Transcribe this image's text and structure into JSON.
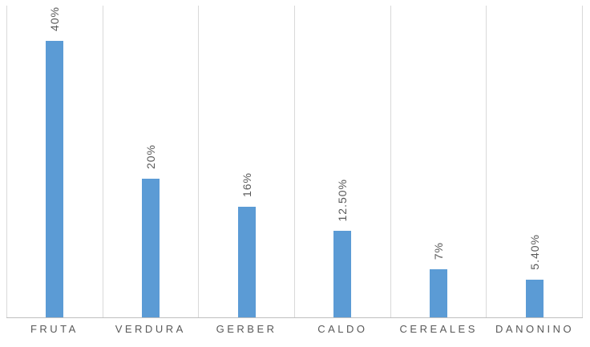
{
  "chart_data": {
    "type": "bar",
    "title": "",
    "categories": [
      "FRUTA",
      "VERDURA",
      "GERBER",
      "CALDO",
      "CEREALES",
      "DANONINO"
    ],
    "values": [
      40,
      20,
      16,
      12.5,
      7,
      5.4
    ],
    "value_labels": [
      "40%",
      "20%",
      "16%",
      "12.50%",
      "7%",
      "5.40%"
    ],
    "xlabel": "",
    "ylabel": "",
    "ylim": [
      0,
      45.1
    ],
    "legend": null,
    "grid": "vertical-category-boundaries",
    "data_label_rotation_deg": 90,
    "colors": {
      "bar": "#5B9BD5",
      "gridline": "#D9D9D9",
      "axis_line": "#BFBFBF",
      "label_text": "#595959"
    }
  }
}
